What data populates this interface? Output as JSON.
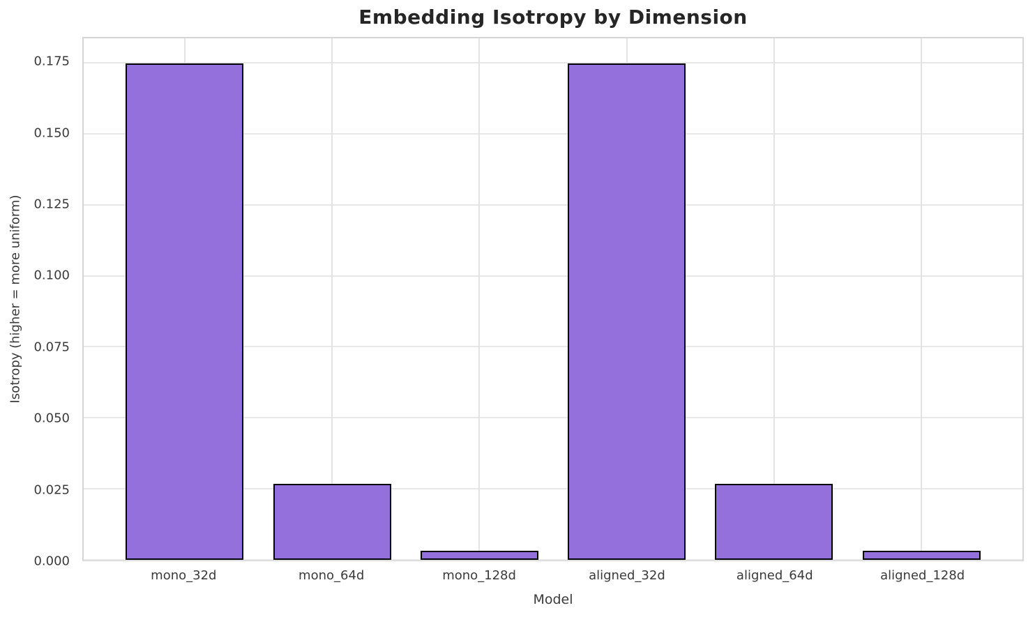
{
  "chart_data": {
    "type": "bar",
    "title": "Embedding Isotropy by Dimension",
    "xlabel": "Model",
    "ylabel": "Isotropy (higher = more uniform)",
    "categories": [
      "mono_32d",
      "mono_64d",
      "mono_128d",
      "aligned_32d",
      "aligned_64d",
      "aligned_128d"
    ],
    "values": [
      0.1747,
      0.0268,
      0.0033,
      0.1747,
      0.0268,
      0.0033
    ],
    "yticks": [
      0.0,
      0.025,
      0.05,
      0.075,
      0.1,
      0.125,
      0.15,
      0.175
    ],
    "ytick_labels": [
      "0.000",
      "0.025",
      "0.050",
      "0.075",
      "0.100",
      "0.125",
      "0.150",
      "0.175"
    ],
    "ylim": [
      0,
      0.1836
    ],
    "xlim": [
      -0.686,
      5.686
    ],
    "bar_width": 0.8,
    "grid": true,
    "legend_position": "none",
    "colors": {
      "bar_fill": "#9370DB",
      "bar_edge": "#000000",
      "gridline": "#e7e7e7",
      "spine": "#d5d5d5",
      "title_text": "#262626",
      "tick_text": "#3a3a3a"
    }
  }
}
